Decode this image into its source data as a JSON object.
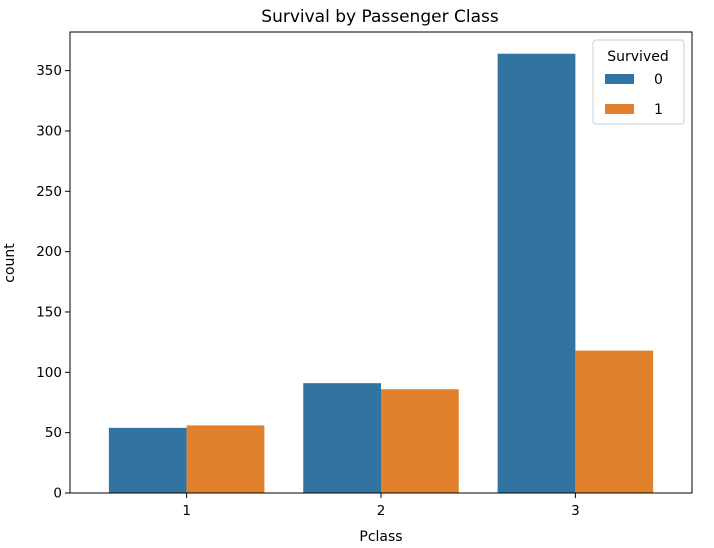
{
  "chart_data": {
    "type": "bar",
    "title": "Survival by Passenger Class",
    "xlabel": "Pclass",
    "ylabel": "count",
    "categories": [
      "1",
      "2",
      "3"
    ],
    "series": [
      {
        "name": "0",
        "values": [
          54,
          91,
          364
        ],
        "color": "#3274a1"
      },
      {
        "name": "1",
        "values": [
          56,
          86,
          118
        ],
        "color": "#e1812c"
      }
    ],
    "ylim": [
      0,
      382
    ],
    "yticks": [
      0,
      50,
      100,
      150,
      200,
      250,
      300,
      350
    ],
    "legend": {
      "title": "Survived",
      "position": "top-right"
    },
    "grid": false
  }
}
